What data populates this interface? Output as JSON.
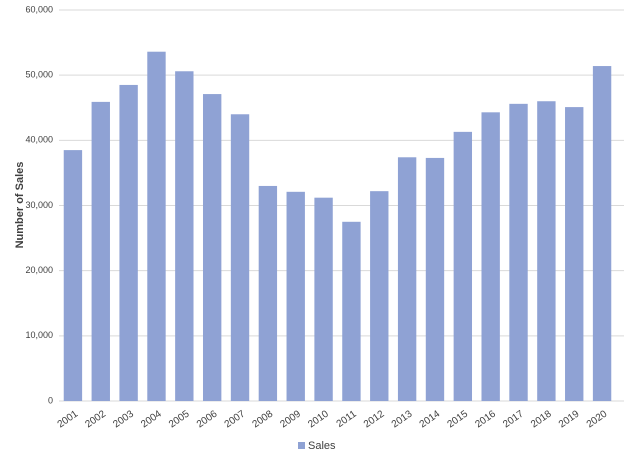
{
  "chart_data": {
    "type": "bar",
    "y_label": "Number of Sales",
    "categories": [
      "2001",
      "2002",
      "2003",
      "2004",
      "2005",
      "2006",
      "2007",
      "2008",
      "2009",
      "2010",
      "2011",
      "2012",
      "2013",
      "2014",
      "2015",
      "2016",
      "2017",
      "2018",
      "2019",
      "2020"
    ],
    "series": [
      {
        "name": "Sales",
        "color": "#8fa2d4",
        "values": [
          38500,
          45900,
          48500,
          53600,
          50600,
          47100,
          44000,
          33000,
          32100,
          31200,
          27500,
          32200,
          37400,
          37300,
          41300,
          44300,
          45600,
          46000,
          45100,
          51400
        ]
      }
    ],
    "ylim": [
      0,
      60000
    ],
    "yticks": [
      0,
      {
        "value": 10000,
        "label": "10,000"
      },
      {
        "value": 20000,
        "label": "20,000"
      },
      {
        "value": 30000,
        "label": "30,000"
      },
      {
        "value": 40000,
        "label": "40,000"
      },
      {
        "value": 50000,
        "label": "50,000"
      },
      {
        "value": 60000,
        "label": "60,000"
      }
    ],
    "grid": true,
    "legend": "bottom"
  }
}
